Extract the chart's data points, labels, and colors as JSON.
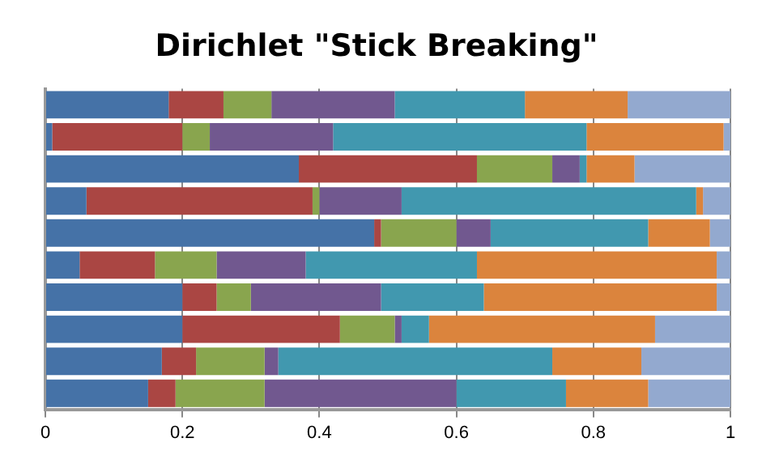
{
  "chart_data": {
    "type": "bar",
    "title": "Dirichlet \"Stick Breaking\"",
    "orientation": "horizontal",
    "stacked": true,
    "categories": [
      null,
      null,
      null,
      null,
      null,
      null,
      null,
      null,
      null,
      null
    ],
    "series": [
      {
        "color": "#4572a7",
        "values": [
          0.18,
          0.01,
          0.37,
          0.06,
          0.48,
          0.05,
          0.2,
          0.2,
          0.17,
          0.15
        ]
      },
      {
        "color": "#aa4643",
        "values": [
          0.08,
          0.19,
          0.26,
          0.33,
          0.01,
          0.11,
          0.05,
          0.23,
          0.05,
          0.04
        ]
      },
      {
        "color": "#89a54e",
        "values": [
          0.07,
          0.04,
          0.11,
          0.01,
          0.11,
          0.09,
          0.05,
          0.08,
          0.1,
          0.13
        ]
      },
      {
        "color": "#71588f",
        "values": [
          0.18,
          0.18,
          0.04,
          0.12,
          0.05,
          0.13,
          0.19,
          0.01,
          0.02,
          0.28
        ]
      },
      {
        "color": "#4198af",
        "values": [
          0.19,
          0.37,
          0.01,
          0.43,
          0.23,
          0.25,
          0.15,
          0.04,
          0.4,
          0.16
        ]
      },
      {
        "color": "#db843d",
        "values": [
          0.15,
          0.2,
          0.07,
          0.01,
          0.09,
          0.35,
          0.34,
          0.33,
          0.13,
          0.12
        ]
      },
      {
        "color": "#93a9cf",
        "values": [
          0.15,
          0.01,
          0.14,
          0.04,
          0.03,
          0.02,
          0.02,
          0.11,
          0.13,
          0.12
        ]
      }
    ],
    "xlim": [
      0,
      1
    ],
    "xticks": [
      0,
      0.2,
      0.4,
      0.6,
      0.8,
      1
    ],
    "grid": "x",
    "legend": false
  }
}
